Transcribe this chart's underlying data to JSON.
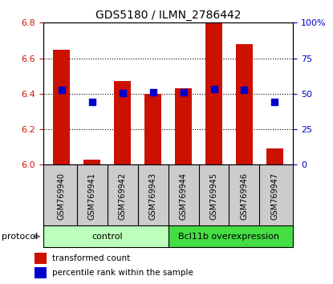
{
  "title": "GDS5180 / ILMN_2786442",
  "samples": [
    "GSM769940",
    "GSM769941",
    "GSM769942",
    "GSM769943",
    "GSM769944",
    "GSM769945",
    "GSM769946",
    "GSM769947"
  ],
  "bar_values": [
    6.65,
    6.03,
    6.47,
    6.4,
    6.43,
    6.8,
    6.68,
    6.09
  ],
  "bar_base": 6.0,
  "percentile_values": [
    6.42,
    6.355,
    6.405,
    6.41,
    6.41,
    6.425,
    6.42,
    6.355
  ],
  "ylim": [
    6.0,
    6.8
  ],
  "yticks_left": [
    6.0,
    6.2,
    6.4,
    6.6,
    6.8
  ],
  "yticks_right": [
    0,
    25,
    50,
    75,
    100
  ],
  "bar_color": "#cc1100",
  "square_color": "#0000cc",
  "control_color": "#bbffbb",
  "overexp_color": "#44dd44",
  "sample_bg_color": "#cccccc",
  "control_label": "control",
  "overexp_label": "Bcl11b overexpression",
  "protocol_label": "protocol",
  "legend_bar_label": "transformed count",
  "legend_sq_label": "percentile rank within the sample",
  "n_control": 4,
  "n_overexp": 4
}
